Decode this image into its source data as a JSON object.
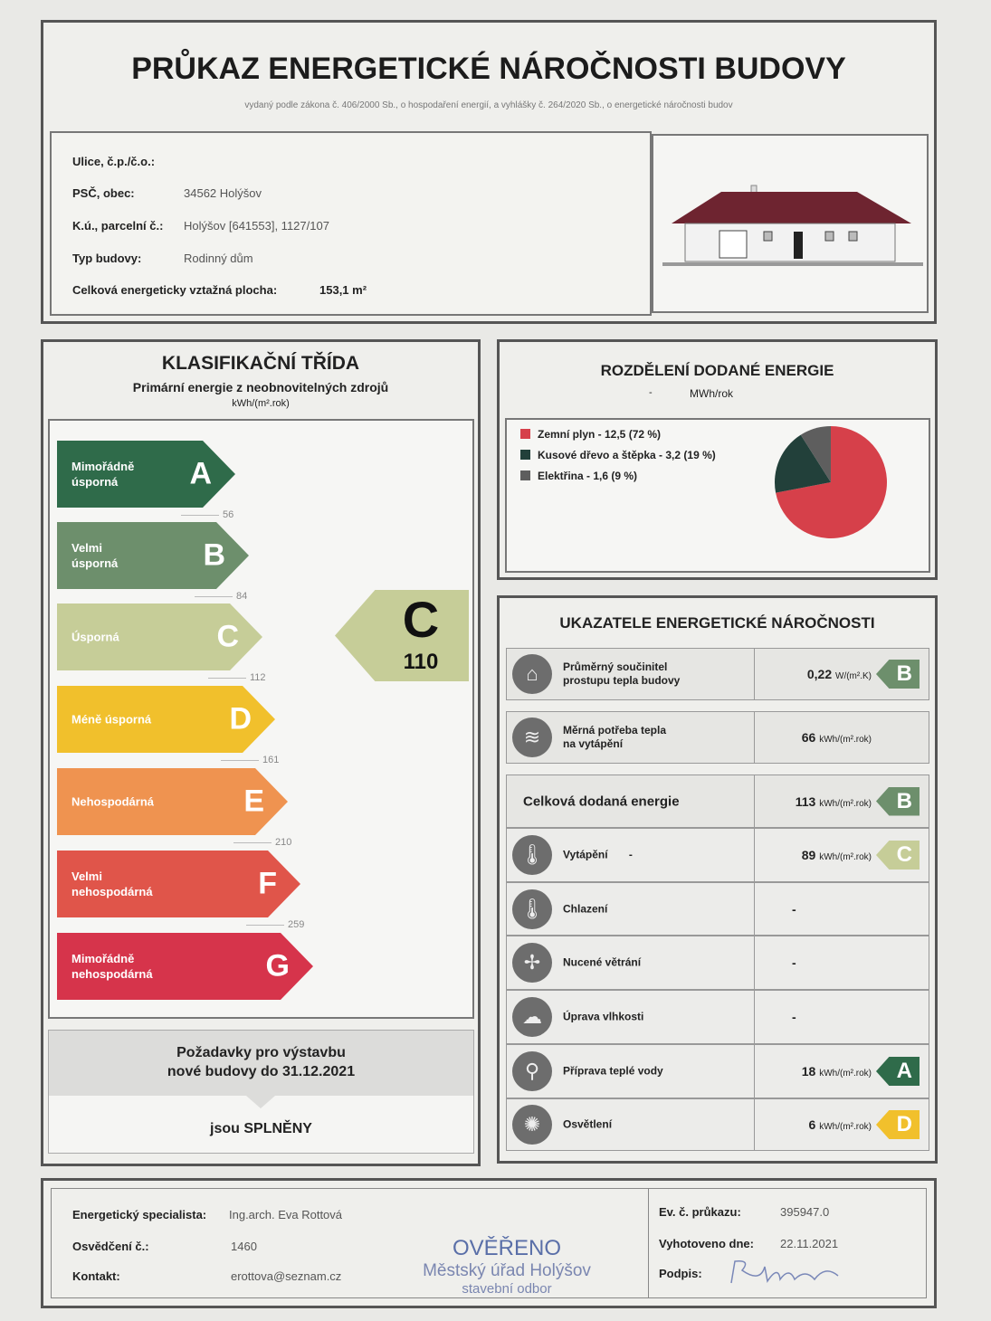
{
  "header": {
    "title": "PRŮKAZ ENERGETICKÉ NÁROČNOSTI BUDOVY",
    "subtitle": "vydaný podle zákona č. 406/2000 Sb., o hospodaření energií, a vyhlášky č. 264/2020 Sb., o energetické náročnosti budov"
  },
  "building": {
    "fields": [
      {
        "label": "Ulice, č.p./č.o.:",
        "value": ""
      },
      {
        "label": "PSČ, obec:",
        "value": "34562 Holýšov"
      },
      {
        "label": "K.ú., parcelní č.:",
        "value": "Holýšov [641553], 1127/107"
      },
      {
        "label": "Typ budovy:",
        "value": "Rodinný dům"
      },
      {
        "label": "Celková energeticky vztažná plocha:",
        "value": "153,1 m²"
      }
    ]
  },
  "classification": {
    "title": "KLASIFIKAČNÍ TŘÍDA",
    "subtitle": "Primární energie z neobnovitelných zdrojů",
    "unit": "kWh/(m².rok)",
    "classes": [
      {
        "letter": "A",
        "label": "Mimořádně\núsporná",
        "color": "#2f6b4a",
        "threshold": "56"
      },
      {
        "letter": "B",
        "label": "Velmi\núsporná",
        "color": "#6d8f6c",
        "threshold": "84"
      },
      {
        "letter": "C",
        "label": "Úsporná",
        "color": "#c6cd98",
        "threshold": "112"
      },
      {
        "letter": "D",
        "label": "Méně úsporná",
        "color": "#f1c02c",
        "threshold": "161"
      },
      {
        "letter": "E",
        "label": "Nehospodárná",
        "color": "#ef9350",
        "threshold": "210"
      },
      {
        "letter": "F",
        "label": "Velmi\nnehospodárná",
        "color": "#e0554a",
        "threshold": "259"
      },
      {
        "letter": "G",
        "label": "Mimořádně\nnehospodárná",
        "color": "#d6344b",
        "threshold": ""
      }
    ],
    "current": {
      "letter": "C",
      "value": "110",
      "color": "#c6cd98"
    },
    "requirements": {
      "title": "Požadavky pro výstavbu\nnové budovy do 31.12.2021",
      "result": "jsou SPLNĚNY"
    }
  },
  "distribution": {
    "title": "ROZDĚLENÍ DODANÉ ENERGIE",
    "dash": "-",
    "unit": "MWh/rok",
    "items": [
      {
        "label": "Zemní plyn - 12,5 (72 %)",
        "percent": 72,
        "color": "#d6404a"
      },
      {
        "label": "Kusové dřevo a štěpka - 3,2 (19 %)",
        "percent": 19,
        "color": "#22403a"
      },
      {
        "label": "Elektřina - 1,6 (9 %)",
        "percent": 9,
        "color": "#5e5e5e"
      }
    ]
  },
  "indicators": {
    "title": "UKAZATELE ENERGETICKÉ NÁROČNOSTI",
    "rows": [
      {
        "icon": "house-icon",
        "glyph": "⌂",
        "name": "Průměrný součinitel\nprostupu tepla budovy",
        "value": "0,22",
        "unit": "W/(m².K)",
        "class": "B",
        "classColor": "#6d8f6c"
      },
      {
        "icon": "heat-demand-icon",
        "glyph": "≋",
        "name": "Měrná potřeba tepla\nna vytápění",
        "value": "66",
        "unit": "kWh/(m².rok)",
        "class": "",
        "classColor": ""
      },
      {
        "icon": "",
        "glyph": "",
        "name": "Celková dodaná energie",
        "value": "113",
        "unit": "kWh/(m².rok)",
        "class": "B",
        "classColor": "#6d8f6c"
      },
      {
        "icon": "heating-thermometer-icon",
        "glyph": "🌡",
        "name": "Vytápění       -",
        "value": "89",
        "unit": "kWh/(m².rok)",
        "class": "C",
        "classColor": "#c6cd98"
      },
      {
        "icon": "cooling-thermometer-icon",
        "glyph": "🌡",
        "name": "Chlazení",
        "value": "-",
        "unit": "",
        "class": "",
        "classColor": ""
      },
      {
        "icon": "fan-icon",
        "glyph": "✢",
        "name": "Nucené větrání",
        "value": "-",
        "unit": "",
        "class": "",
        "classColor": ""
      },
      {
        "icon": "humidity-icon",
        "glyph": "☁",
        "name": "Úprava vlhkosti",
        "value": "-",
        "unit": "",
        "class": "",
        "classColor": ""
      },
      {
        "icon": "faucet-icon",
        "glyph": "⚲",
        "name": "Příprava teplé vody",
        "value": "18",
        "unit": "kWh/(m².rok)",
        "class": "A",
        "classColor": "#2f6b4a"
      },
      {
        "icon": "lightbulb-icon",
        "glyph": "✺",
        "name": "Osvětlení",
        "value": "6",
        "unit": "kWh/(m².rok)",
        "class": "D",
        "classColor": "#f1c02c"
      }
    ]
  },
  "footer": {
    "left": [
      {
        "label": "Energetický specialista:",
        "value": "Ing.arch. Eva Rottová"
      },
      {
        "label": "Osvědčení č.:",
        "value": "1460"
      },
      {
        "label": "Kontakt:",
        "value": "erottova@seznam.cz"
      }
    ],
    "stamp": {
      "line1": "OVĚŘENO",
      "line2": "Městský úřad Holýšov",
      "line3": "stavební odbor"
    },
    "right": [
      {
        "label": "Ev. č. průkazu:",
        "value": "395947.0"
      },
      {
        "label": "Vyhotoveno dne:",
        "value": "22.11.2021"
      },
      {
        "label": "Podpis:",
        "value": ""
      }
    ]
  }
}
